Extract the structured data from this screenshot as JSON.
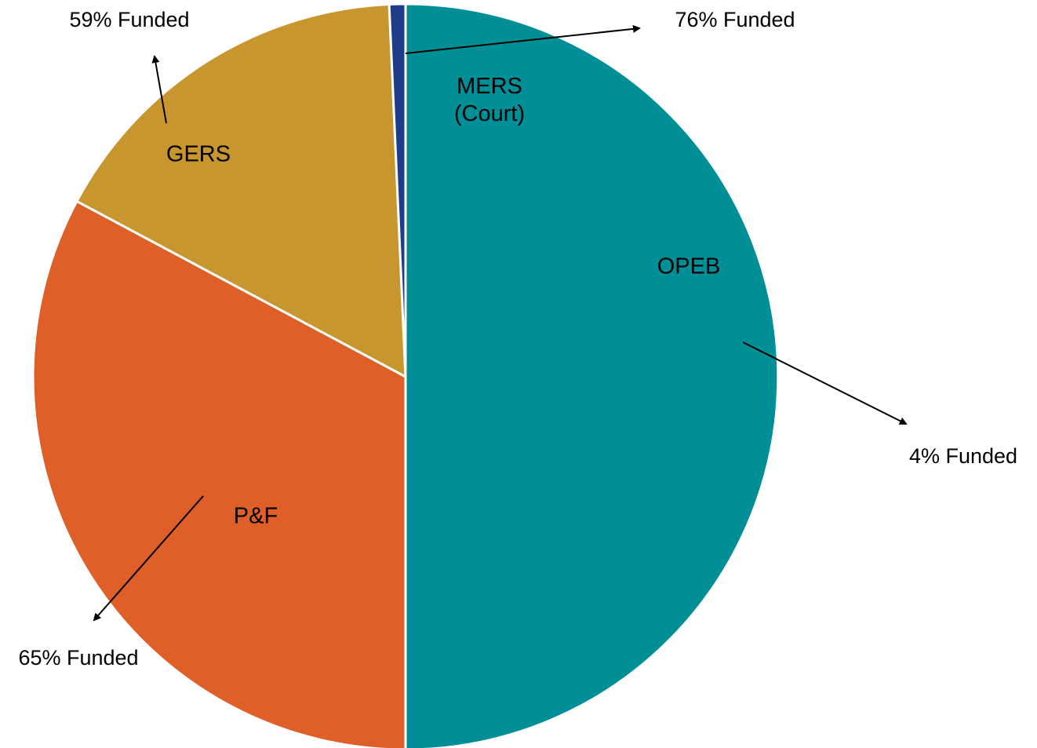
{
  "chart_data": {
    "type": "pie",
    "categories": [
      "OPEB",
      "P&F",
      "GERS",
      "MERS (Court)"
    ],
    "values": [
      50,
      32.8,
      16.5,
      0.7
    ],
    "colors": [
      "#008f96",
      "#de5f27",
      "#c8962e",
      "#1f3c88"
    ],
    "annotations": [
      "4% Funded",
      "65% Funded",
      "59% Funded",
      "76% Funded"
    ]
  }
}
